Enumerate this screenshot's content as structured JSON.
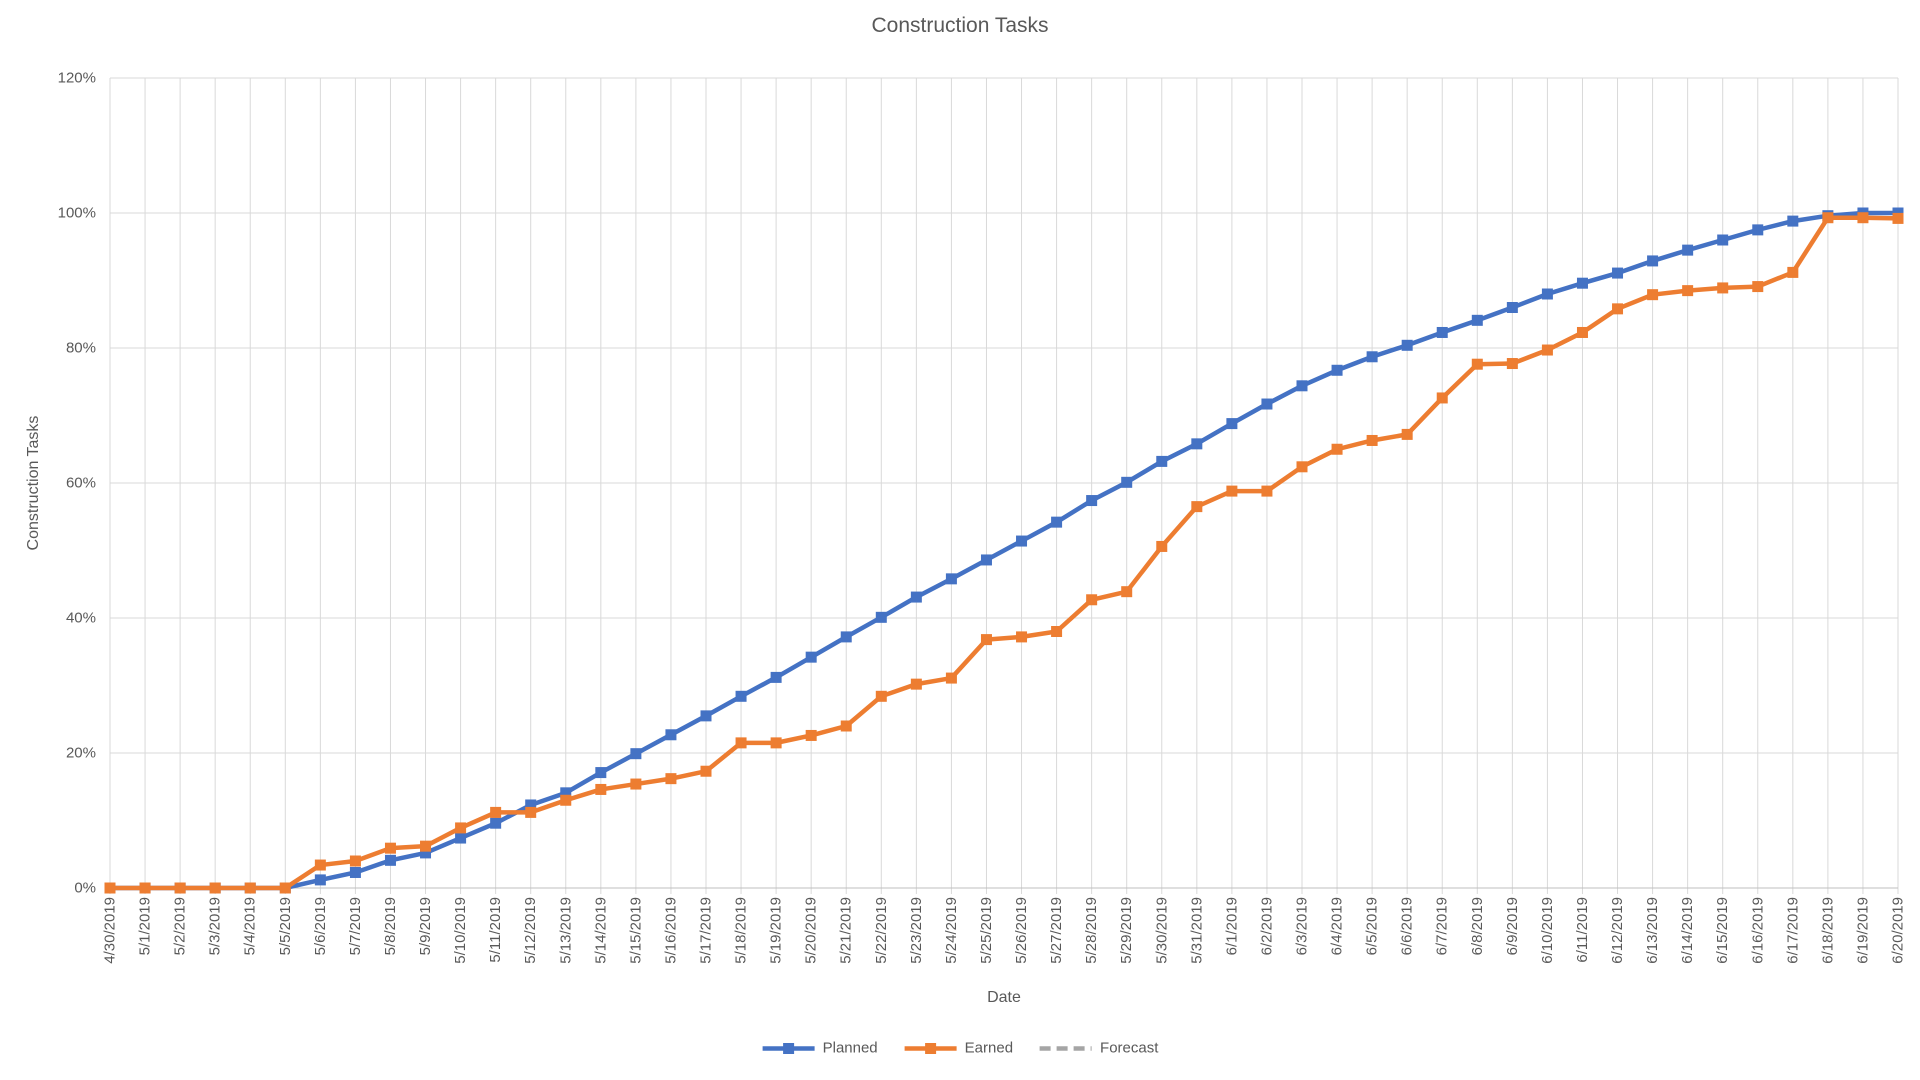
{
  "colors": {
    "planned": "#4472C4",
    "earned": "#ED7D31",
    "forecast": "#A5A5A5",
    "gridline": "#D9D9D9",
    "axis_line": "#BFBFBF",
    "text": "#595959",
    "title": "#595959",
    "background": "#FFFFFF"
  },
  "chart_data": {
    "type": "line",
    "title": "Construction Tasks",
    "xlabel": "Date",
    "ylabel": "Construction Tasks",
    "ylim": [
      0,
      120
    ],
    "ytick_step": 20,
    "ytick_format": "percent",
    "yticks": [
      "0%",
      "20%",
      "40%",
      "60%",
      "80%",
      "100%",
      "120%"
    ],
    "grid": true,
    "legend_position": "bottom",
    "categories": [
      "4/30/2019",
      "5/1/2019",
      "5/2/2019",
      "5/3/2019",
      "5/4/2019",
      "5/5/2019",
      "5/6/2019",
      "5/7/2019",
      "5/8/2019",
      "5/9/2019",
      "5/10/2019",
      "5/11/2019",
      "5/12/2019",
      "5/13/2019",
      "5/14/2019",
      "5/15/2019",
      "5/16/2019",
      "5/17/2019",
      "5/18/2019",
      "5/19/2019",
      "5/20/2019",
      "5/21/2019",
      "5/22/2019",
      "5/23/2019",
      "5/24/2019",
      "5/25/2019",
      "5/26/2019",
      "5/27/2019",
      "5/28/2019",
      "5/29/2019",
      "5/30/2019",
      "5/31/2019",
      "6/1/2019",
      "6/2/2019",
      "6/3/2019",
      "6/4/2019",
      "6/5/2019",
      "6/6/2019",
      "6/7/2019",
      "6/8/2019",
      "6/9/2019",
      "6/10/2019",
      "6/11/2019",
      "6/12/2019",
      "6/13/2019",
      "6/14/2019",
      "6/15/2019",
      "6/16/2019",
      "6/17/2019",
      "6/18/2019",
      "6/19/2019",
      "6/20/2019"
    ],
    "series": [
      {
        "name": "Planned",
        "color": "#4472C4",
        "marker": "square",
        "line_style": "solid",
        "values": [
          0,
          0,
          0,
          0,
          0,
          0,
          1.2,
          2.3,
          4.1,
          5.2,
          7.4,
          9.6,
          12.3,
          14.1,
          17.1,
          19.9,
          22.7,
          25.5,
          28.4,
          31.2,
          34.2,
          37.2,
          40.1,
          43.1,
          45.8,
          48.6,
          51.4,
          54.2,
          57.4,
          60.1,
          63.2,
          65.8,
          68.8,
          71.7,
          74.4,
          76.7,
          78.7,
          80.4,
          82.3,
          84.1,
          86,
          88,
          89.6,
          91.1,
          92.9,
          94.5,
          96,
          97.5,
          98.8,
          99.6,
          100,
          100
        ]
      },
      {
        "name": "Earned",
        "color": "#ED7D31",
        "marker": "square",
        "line_style": "solid",
        "values": [
          0,
          0,
          0,
          0,
          0,
          0,
          3.4,
          4,
          5.9,
          6.2,
          8.9,
          11.2,
          11.2,
          13,
          14.6,
          15.4,
          16.2,
          17.3,
          21.5,
          21.5,
          22.6,
          24,
          28.4,
          30.2,
          31.1,
          36.8,
          37.2,
          38,
          42.7,
          43.9,
          50.6,
          56.5,
          58.8,
          58.8,
          62.4,
          65,
          66.3,
          67.2,
          72.6,
          77.6,
          77.7,
          79.7,
          82.3,
          85.8,
          87.9,
          88.5,
          88.9,
          89.1,
          91.2,
          99.3,
          99.3,
          99.2
        ]
      },
      {
        "name": "Forecast",
        "color": "#A5A5A5",
        "marker": "none",
        "line_style": "dashed",
        "values": []
      }
    ]
  }
}
